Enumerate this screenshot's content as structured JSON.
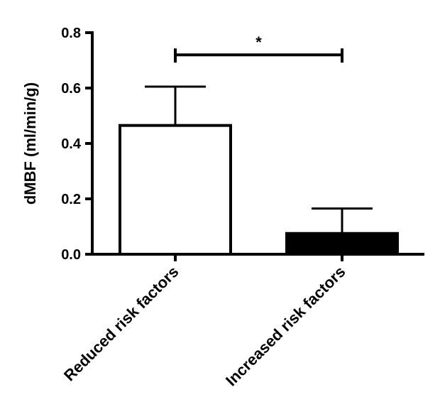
{
  "chart_data": {
    "type": "bar",
    "title": "",
    "xlabel": "",
    "ylabel": "dMBF (ml/min/g)",
    "ylim": [
      0,
      0.8
    ],
    "yticks": [
      "0.0",
      "0.2",
      "0.4",
      "0.6",
      "0.8"
    ],
    "categories": [
      "Reduced risk factors",
      "Increased risk factors"
    ],
    "values": [
      0.465,
      0.075
    ],
    "error_upper": [
      0.14,
      0.09
    ],
    "bar_fill": [
      "#ffffff",
      "#000000"
    ],
    "bar_stroke": "#000000",
    "grid": false,
    "legend": "none",
    "significance": {
      "between": [
        0,
        1
      ],
      "label": "*",
      "y": 0.72
    }
  }
}
